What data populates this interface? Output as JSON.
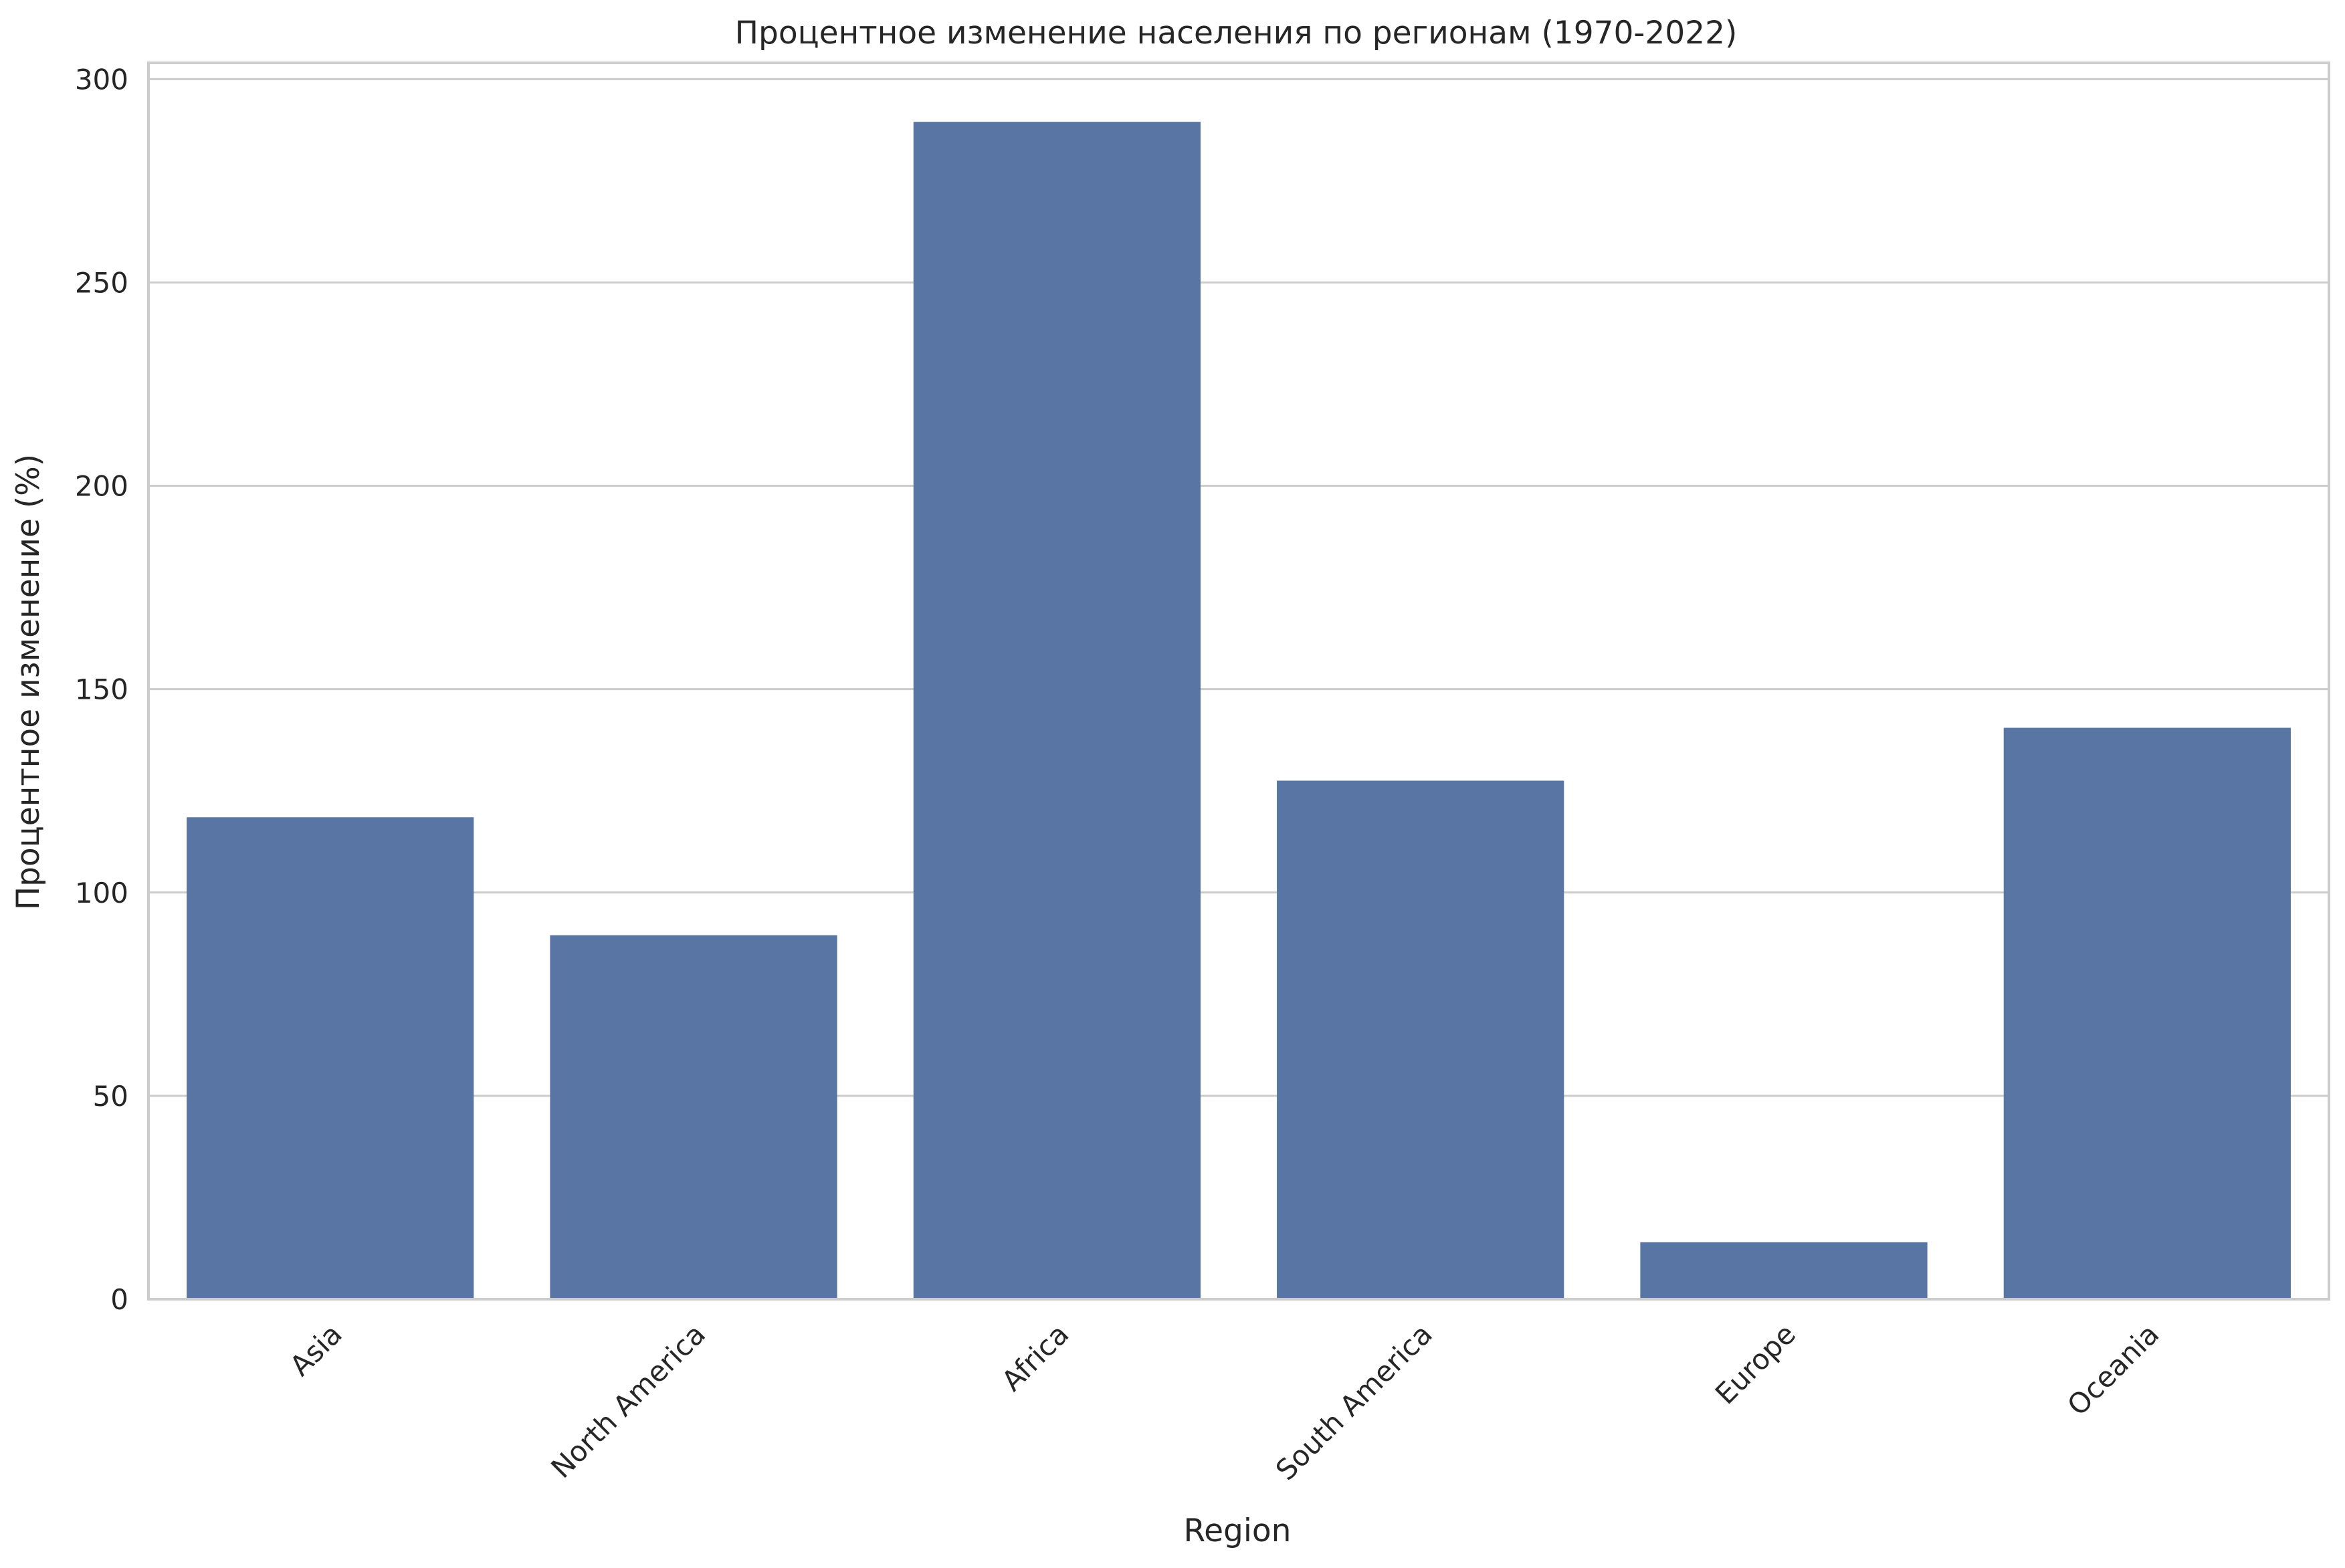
{
  "chart_data": {
    "type": "bar",
    "title": "Процентное изменение населения по регионам (1970-2022)",
    "xlabel": "Region",
    "ylabel": "Процентное изменение (%)",
    "categories": [
      "Asia",
      "North America",
      "Africa",
      "South America",
      "Europe",
      "Oceania"
    ],
    "values": [
      118.5,
      89.5,
      289.5,
      127.5,
      14,
      140.5
    ],
    "ylim": [
      0,
      304
    ],
    "yticks": [
      0,
      50,
      100,
      150,
      200,
      250,
      300
    ],
    "grid": true,
    "xtick_rotation_deg": -45,
    "colors": {
      "bar": "#5975a4",
      "grid": "#cccccc",
      "text": "#262626",
      "background": "#ffffff"
    }
  }
}
